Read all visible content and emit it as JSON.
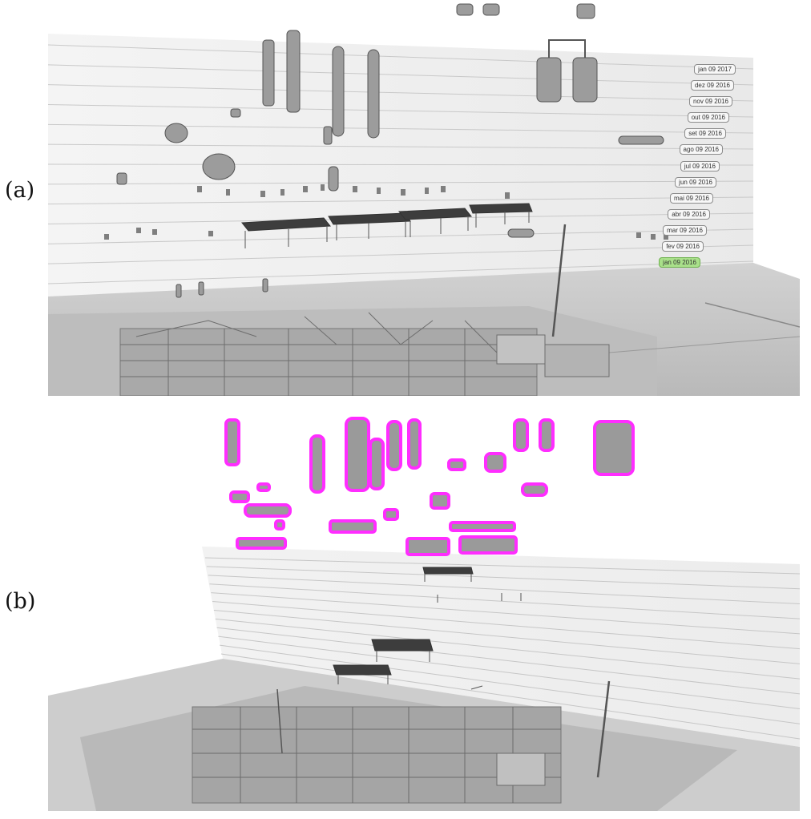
{
  "panels": [
    {
      "label": "(a)",
      "view": "timeline-exploded"
    },
    {
      "label": "(b)",
      "view": "selection-highlight"
    }
  ],
  "timeline": {
    "dates": [
      "jan 09 2017",
      "dez 09 2016",
      "nov 09 2016",
      "out 09 2016",
      "set 09 2016",
      "ago 09 2016",
      "jul 09 2016",
      "jun 09 2016",
      "mai 09 2016",
      "abr 09 2016",
      "mar 09 2016",
      "fev 09 2016",
      "jan 09 2016"
    ],
    "selected": "jan 09 2016"
  },
  "colors": {
    "highlight": "#ff2dff",
    "selected_chip": "#a9e08a",
    "model_gray": "#8a8a8a",
    "ground": "#c8c8c8",
    "wall": "#f2f2f2"
  }
}
